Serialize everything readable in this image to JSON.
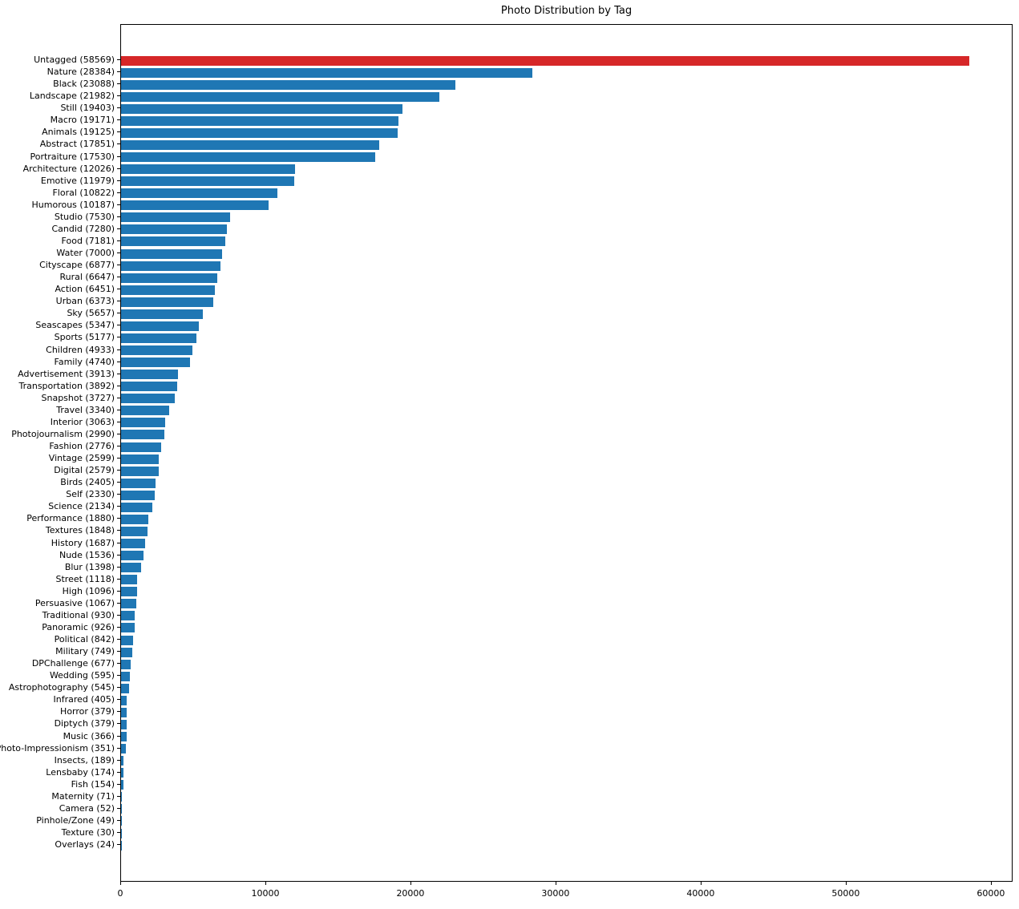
{
  "chart_data": {
    "type": "bar",
    "orientation": "horizontal",
    "title": "Photo Distribution by Tag",
    "categories": [
      "Untagged",
      "Nature",
      "Black",
      "Landscape",
      "Still",
      "Macro",
      "Animals",
      "Abstract",
      "Portraiture",
      "Architecture",
      "Emotive",
      "Floral",
      "Humorous",
      "Studio",
      "Candid",
      "Food",
      "Water",
      "Cityscape",
      "Rural",
      "Action",
      "Urban",
      "Sky",
      "Seascapes",
      "Sports",
      "Children",
      "Family",
      "Advertisement",
      "Transportation",
      "Snapshot",
      "Travel",
      "Interior",
      "Photojournalism",
      "Fashion",
      "Vintage",
      "Digital",
      "Birds",
      "Self",
      "Science",
      "Performance",
      "Textures",
      "History",
      "Nude",
      "Blur",
      "Street",
      "High",
      "Persuasive",
      "Traditional",
      "Panoramic",
      "Political",
      "Military",
      "DPChallenge",
      "Wedding",
      "Astrophotography",
      "Infrared",
      "Horror",
      "Diptych",
      "Music",
      "Photo-Impressionism",
      "Insects,",
      "Lensbaby",
      "Fish",
      "Maternity",
      "Camera",
      "Pinhole/Zone",
      "Texture",
      "Overlays"
    ],
    "values": [
      58569,
      28384,
      23088,
      21982,
      19403,
      19171,
      19125,
      17851,
      17530,
      12026,
      11979,
      10822,
      10187,
      7530,
      7280,
      7181,
      7000,
      6877,
      6647,
      6451,
      6373,
      5657,
      5347,
      5177,
      4933,
      4740,
      3913,
      3892,
      3727,
      3340,
      3063,
      2990,
      2776,
      2599,
      2579,
      2405,
      2330,
      2134,
      1880,
      1848,
      1687,
      1536,
      1398,
      1118,
      1096,
      1067,
      930,
      926,
      842,
      749,
      677,
      595,
      545,
      405,
      379,
      379,
      366,
      351,
      189,
      174,
      154,
      71,
      52,
      49,
      30,
      24
    ],
    "y_label_format": "{category} ({value})",
    "xlabel": "",
    "ylabel": "",
    "xlim": [
      0,
      61500
    ],
    "x_ticks": [
      0,
      10000,
      20000,
      30000,
      40000,
      50000,
      60000
    ],
    "x_tick_labels": [
      "0",
      "10000",
      "20000",
      "30000",
      "40000",
      "50000",
      "60000"
    ],
    "bar_color": "#1f77b4",
    "highlight_color": "#d62728",
    "highlight_index": 0,
    "grid": false,
    "legend": false,
    "background_color": "#ffffff",
    "spine_color": "#000000"
  }
}
